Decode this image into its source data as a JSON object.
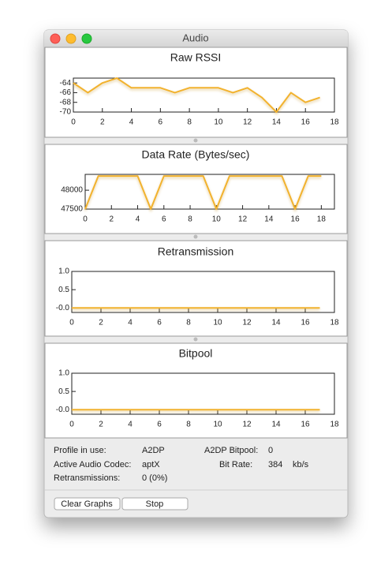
{
  "window": {
    "title": "Audio"
  },
  "chart_data": [
    {
      "type": "line",
      "title": "Raw RSSI",
      "x": [
        0,
        1,
        2,
        3,
        4,
        5,
        6,
        7,
        8,
        9,
        10,
        11,
        12,
        13,
        14,
        15,
        16,
        17
      ],
      "values": [
        -64,
        -66,
        -64,
        -63,
        -65,
        -65,
        -65,
        -66,
        -65,
        -65,
        -65,
        -66,
        -65,
        -67,
        -70,
        -66,
        -68,
        -67
      ],
      "color": "#f2b22e",
      "xlim": [
        0,
        18
      ],
      "xticks": [
        0,
        2,
        4,
        6,
        8,
        10,
        12,
        14,
        16,
        18
      ],
      "ylim": [
        -70,
        -63
      ],
      "yticks": [
        -64,
        -66,
        -68,
        -70
      ]
    },
    {
      "type": "line",
      "title": "Data Rate (Bytes/sec)",
      "x": [
        0,
        1,
        2,
        3,
        4,
        5,
        6,
        7,
        8,
        9,
        10,
        11,
        12,
        13,
        14,
        15,
        16,
        17,
        18
      ],
      "values": [
        47500,
        48375,
        48375,
        48375,
        48375,
        47500,
        48375,
        48375,
        48375,
        48375,
        47500,
        48375,
        48375,
        48375,
        48375,
        48375,
        47500,
        48375,
        48375
      ],
      "color": "#f2b22e",
      "xlim": [
        0,
        19
      ],
      "xticks": [
        0,
        2,
        4,
        6,
        8,
        10,
        12,
        14,
        16,
        18
      ],
      "ylim": [
        47500,
        48420
      ],
      "yticks": [
        48000,
        47500
      ]
    },
    {
      "type": "line",
      "title": "Retransmission",
      "x": [
        0,
        1,
        2,
        3,
        4,
        5,
        6,
        7,
        8,
        9,
        10,
        11,
        12,
        13,
        14,
        15,
        16,
        17
      ],
      "values": [
        0,
        0,
        0,
        0,
        0,
        0,
        0,
        0,
        0,
        0,
        0,
        0,
        0,
        0,
        0,
        0,
        0,
        0
      ],
      "color": "#f2b22e",
      "xlim": [
        0,
        18
      ],
      "xticks": [
        0,
        2,
        4,
        6,
        8,
        10,
        12,
        14,
        16,
        18
      ],
      "ylim": [
        -0.125,
        1.0
      ],
      "yticks": [
        {
          "value": 1,
          "label": "1.0"
        },
        0.5,
        {
          "value": 0,
          "label": "-0.0"
        }
      ]
    },
    {
      "type": "line",
      "title": "Bitpool",
      "x": [
        0,
        1,
        2,
        3,
        4,
        5,
        6,
        7,
        8,
        9,
        10,
        11,
        12,
        13,
        14,
        15,
        16,
        17
      ],
      "values": [
        0,
        0,
        0,
        0,
        0,
        0,
        0,
        0,
        0,
        0,
        0,
        0,
        0,
        0,
        0,
        0,
        0,
        0
      ],
      "color": "#f2b22e",
      "xlim": [
        0,
        18
      ],
      "xticks": [
        0,
        2,
        4,
        6,
        8,
        10,
        12,
        14,
        16,
        18
      ],
      "ylim": [
        -0.125,
        1.0
      ],
      "yticks": [
        {
          "value": 1,
          "label": "1.0"
        },
        0.5,
        {
          "value": 0,
          "label": "-0.0"
        }
      ]
    }
  ],
  "info": [
    {
      "label": "Profile in use:",
      "value": "A2DP"
    },
    {
      "label": "Active Audio Codec:",
      "value": "aptX"
    },
    {
      "label": "Retransmissions:",
      "value": "0 (0%)"
    },
    {
      "label": "A2DP Bitpool:",
      "value": "0"
    },
    {
      "label": "Bit Rate:",
      "value": "384",
      "unit": "kb/s"
    }
  ],
  "buttons": [
    "Clear Graphs",
    "Stop"
  ]
}
